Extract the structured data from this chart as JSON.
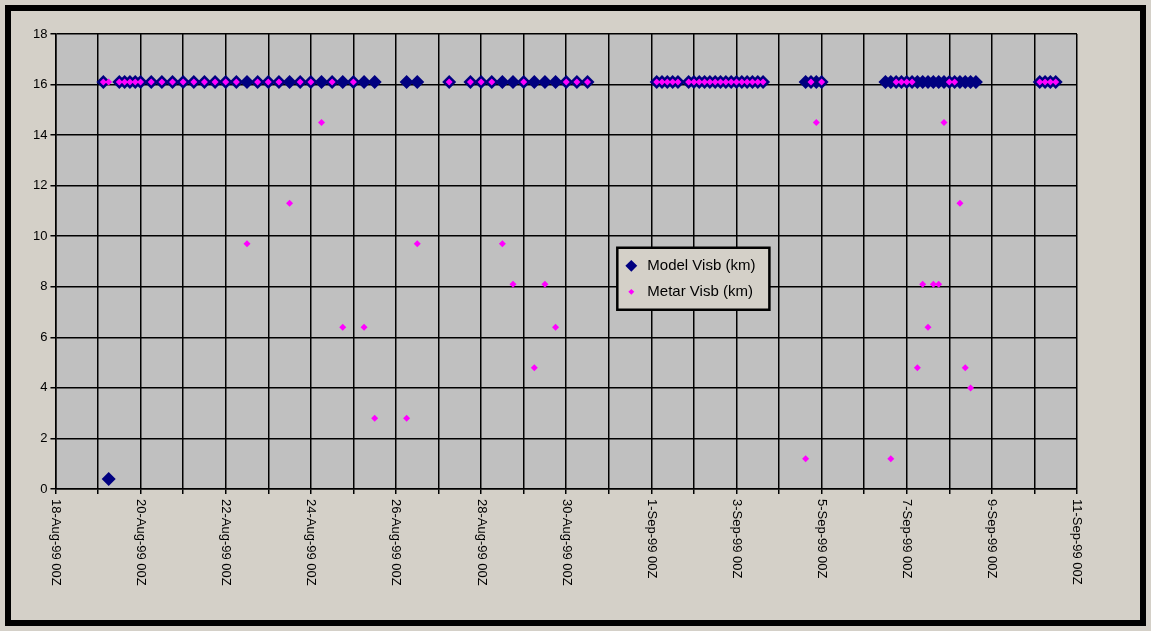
{
  "chart_data": {
    "type": "scatter",
    "legend": "center",
    "grid": true,
    "marker": "diamond",
    "xlim": [
      "1999-08-18T00:00",
      "1999-09-11T00:00"
    ],
    "xticks": [
      {
        "value": "1999-08-18T00:00",
        "label": "18-Aug-99 00Z"
      },
      {
        "value": "1999-08-19T00:00",
        "label": null
      },
      {
        "value": "1999-08-20T00:00",
        "label": "20-Aug-99 00Z"
      },
      {
        "value": "1999-08-21T00:00",
        "label": null
      },
      {
        "value": "1999-08-22T00:00",
        "label": "22-Aug-99 00Z"
      },
      {
        "value": "1999-08-23T00:00",
        "label": null
      },
      {
        "value": "1999-08-24T00:00",
        "label": "24-Aug-99 00Z"
      },
      {
        "value": "1999-08-25T00:00",
        "label": null
      },
      {
        "value": "1999-08-26T00:00",
        "label": "26-Aug-99 00Z"
      },
      {
        "value": "1999-08-27T00:00",
        "label": null
      },
      {
        "value": "1999-08-28T00:00",
        "label": "28-Aug-99 00Z"
      },
      {
        "value": "1999-08-29T00:00",
        "label": null
      },
      {
        "value": "1999-08-30T00:00",
        "label": "30-Aug-99 00Z"
      },
      {
        "value": "1999-08-31T00:00",
        "label": null
      },
      {
        "value": "1999-09-01T00:00",
        "label": "1-Sep-99 00Z"
      },
      {
        "value": "1999-09-02T00:00",
        "label": null
      },
      {
        "value": "1999-09-03T00:00",
        "label": "3-Sep-99 00Z"
      },
      {
        "value": "1999-09-04T00:00",
        "label": null
      },
      {
        "value": "1999-09-05T00:00",
        "label": "5-Sep-99 00Z"
      },
      {
        "value": "1999-09-06T00:00",
        "label": null
      },
      {
        "value": "1999-09-07T00:00",
        "label": "7-Sep-99 00Z"
      },
      {
        "value": "1999-09-08T00:00",
        "label": null
      },
      {
        "value": "1999-09-09T00:00",
        "label": "9-Sep-99 00Z"
      },
      {
        "value": "1999-09-10T00:00",
        "label": null
      },
      {
        "value": "1999-09-11T00:00",
        "label": "11-Sep-99 00Z"
      }
    ],
    "ylim": [
      0,
      18
    ],
    "yticks": [
      0,
      2,
      4,
      6,
      8,
      10,
      12,
      14,
      16,
      18
    ],
    "series": [
      {
        "name": "Model Visb (km)",
        "color": "#000080",
        "x": [
          "1999-08-19T03:00",
          "1999-08-19T06:00",
          "1999-08-19T12:00",
          "1999-08-19T15:00",
          "1999-08-19T18:00",
          "1999-08-19T21:00",
          "1999-08-20T00:00",
          "1999-08-20T06:00",
          "1999-08-20T12:00",
          "1999-08-20T18:00",
          "1999-08-21T00:00",
          "1999-08-21T06:00",
          "1999-08-21T12:00",
          "1999-08-21T18:00",
          "1999-08-22T00:00",
          "1999-08-22T06:00",
          "1999-08-22T12:00",
          "1999-08-22T18:00",
          "1999-08-23T00:00",
          "1999-08-23T06:00",
          "1999-08-23T12:00",
          "1999-08-23T18:00",
          "1999-08-24T00:00",
          "1999-08-24T06:00",
          "1999-08-24T12:00",
          "1999-08-24T18:00",
          "1999-08-25T00:00",
          "1999-08-25T06:00",
          "1999-08-25T12:00",
          "1999-08-26T06:00",
          "1999-08-26T12:00",
          "1999-08-27T06:00",
          "1999-08-27T18:00",
          "1999-08-28T00:00",
          "1999-08-28T06:00",
          "1999-08-28T12:00",
          "1999-08-28T18:00",
          "1999-08-29T00:00",
          "1999-08-29T06:00",
          "1999-08-29T12:00",
          "1999-08-29T18:00",
          "1999-08-30T00:00",
          "1999-08-30T06:00",
          "1999-08-30T12:00",
          "1999-09-01T03:00",
          "1999-09-01T06:00",
          "1999-09-01T09:00",
          "1999-09-01T12:00",
          "1999-09-01T15:00",
          "1999-09-01T21:00",
          "1999-09-02T00:00",
          "1999-09-02T03:00",
          "1999-09-02T06:00",
          "1999-09-02T09:00",
          "1999-09-02T12:00",
          "1999-09-02T15:00",
          "1999-09-02T18:00",
          "1999-09-02T21:00",
          "1999-09-03T00:00",
          "1999-09-03T03:00",
          "1999-09-03T06:00",
          "1999-09-03T09:00",
          "1999-09-03T12:00",
          "1999-09-03T15:00",
          "1999-09-04T15:00",
          "1999-09-04T18:00",
          "1999-09-04T21:00",
          "1999-09-05T00:00",
          "1999-09-06T12:00",
          "1999-09-06T15:00",
          "1999-09-06T18:00",
          "1999-09-06T21:00",
          "1999-09-07T00:00",
          "1999-09-07T03:00",
          "1999-09-07T06:00",
          "1999-09-07T09:00",
          "1999-09-07T12:00",
          "1999-09-07T15:00",
          "1999-09-07T18:00",
          "1999-09-07T21:00",
          "1999-09-08T00:00",
          "1999-09-08T03:00",
          "1999-09-08T06:00",
          "1999-09-08T09:00",
          "1999-09-08T12:00",
          "1999-09-08T15:00",
          "1999-09-10T03:00",
          "1999-09-10T06:00",
          "1999-09-10T09:00",
          "1999-09-10T12:00"
        ],
        "values": [
          16.1,
          0.4,
          16.1,
          16.1,
          16.1,
          16.1,
          16.1,
          16.1,
          16.1,
          16.1,
          16.1,
          16.1,
          16.1,
          16.1,
          16.1,
          16.1,
          16.1,
          16.1,
          16.1,
          16.1,
          16.1,
          16.1,
          16.1,
          16.1,
          16.1,
          16.1,
          16.1,
          16.1,
          16.1,
          16.1,
          16.1,
          16.1,
          16.1,
          16.1,
          16.1,
          16.1,
          16.1,
          16.1,
          16.1,
          16.1,
          16.1,
          16.1,
          16.1,
          16.1,
          16.1,
          16.1,
          16.1,
          16.1,
          16.1,
          16.1,
          16.1,
          16.1,
          16.1,
          16.1,
          16.1,
          16.1,
          16.1,
          16.1,
          16.1,
          16.1,
          16.1,
          16.1,
          16.1,
          16.1,
          16.1,
          16.1,
          16.1,
          16.1,
          16.1,
          16.1,
          16.1,
          16.1,
          16.1,
          16.1,
          16.1,
          16.1,
          16.1,
          16.1,
          16.1,
          16.1,
          16.1,
          16.1,
          16.1,
          16.1,
          16.1,
          16.1,
          16.1,
          16.1,
          16.1,
          16.1
        ]
      },
      {
        "name": "Metar Visb (km)",
        "color": "#ff00ff",
        "x": [
          "1999-08-19T03:00",
          "1999-08-19T06:00",
          "1999-08-19T12:00",
          "1999-08-19T15:00",
          "1999-08-19T18:00",
          "1999-08-19T21:00",
          "1999-08-20T00:00",
          "1999-08-20T06:00",
          "1999-08-20T12:00",
          "1999-08-20T18:00",
          "1999-08-21T00:00",
          "1999-08-21T06:00",
          "1999-08-21T12:00",
          "1999-08-21T18:00",
          "1999-08-22T00:00",
          "1999-08-22T06:00",
          "1999-08-22T12:00",
          "1999-08-22T18:00",
          "1999-08-23T00:00",
          "1999-08-23T06:00",
          "1999-08-23T12:00",
          "1999-08-23T18:00",
          "1999-08-24T00:00",
          "1999-08-24T06:00",
          "1999-08-24T12:00",
          "1999-08-24T18:00",
          "1999-08-25T00:00",
          "1999-08-25T06:00",
          "1999-08-25T12:00",
          "1999-08-26T06:00",
          "1999-08-26T12:00",
          "1999-08-27T06:00",
          "1999-08-27T18:00",
          "1999-08-28T00:00",
          "1999-08-28T06:00",
          "1999-08-28T12:00",
          "1999-08-28T18:00",
          "1999-08-29T00:00",
          "1999-08-29T06:00",
          "1999-08-29T12:00",
          "1999-08-29T18:00",
          "1999-08-30T00:00",
          "1999-08-30T06:00",
          "1999-08-30T12:00",
          "1999-09-01T03:00",
          "1999-09-01T06:00",
          "1999-09-01T09:00",
          "1999-09-01T12:00",
          "1999-09-01T15:00",
          "1999-09-01T21:00",
          "1999-09-02T00:00",
          "1999-09-02T03:00",
          "1999-09-02T06:00",
          "1999-09-02T09:00",
          "1999-09-02T12:00",
          "1999-09-02T15:00",
          "1999-09-02T18:00",
          "1999-09-02T21:00",
          "1999-09-03T00:00",
          "1999-09-03T03:00",
          "1999-09-03T06:00",
          "1999-09-03T09:00",
          "1999-09-03T12:00",
          "1999-09-03T15:00",
          "1999-09-04T15:00",
          "1999-09-04T18:00",
          "1999-09-04T21:00",
          "1999-09-05T00:00",
          "1999-09-06T15:00",
          "1999-09-06T18:00",
          "1999-09-06T21:00",
          "1999-09-07T00:00",
          "1999-09-07T03:00",
          "1999-09-07T06:00",
          "1999-09-07T09:00",
          "1999-09-07T12:00",
          "1999-09-07T15:00",
          "1999-09-07T18:00",
          "1999-09-07T21:00",
          "1999-09-08T00:00",
          "1999-09-08T03:00",
          "1999-09-08T06:00",
          "1999-09-08T09:00",
          "1999-09-08T12:00",
          "1999-09-10T03:00",
          "1999-09-10T06:00",
          "1999-09-10T09:00",
          "1999-09-10T12:00"
        ],
        "values": [
          16.1,
          16.1,
          16.1,
          16.1,
          16.1,
          16.1,
          16.1,
          16.1,
          16.1,
          16.1,
          16.1,
          16.1,
          16.1,
          16.1,
          16.1,
          16.1,
          9.7,
          16.1,
          16.1,
          16.1,
          11.3,
          16.1,
          16.1,
          14.5,
          16.1,
          6.4,
          16.1,
          6.4,
          2.8,
          2.8,
          9.7,
          16.1,
          16.1,
          16.1,
          16.1,
          9.7,
          8.1,
          16.1,
          4.8,
          8.1,
          6.4,
          16.1,
          16.1,
          16.1,
          16.1,
          16.1,
          16.1,
          16.1,
          16.1,
          16.1,
          16.1,
          16.1,
          16.1,
          16.1,
          16.1,
          16.1,
          16.1,
          16.1,
          16.1,
          16.1,
          16.1,
          16.1,
          16.1,
          16.1,
          1.2,
          16.1,
          14.5,
          16.1,
          1.2,
          16.1,
          16.1,
          16.1,
          16.1,
          4.8,
          8.1,
          6.4,
          8.1,
          8.1,
          14.5,
          16.1,
          16.1,
          11.3,
          4.8,
          4.0,
          16.1,
          16.1,
          16.1,
          16.1
        ]
      }
    ]
  }
}
